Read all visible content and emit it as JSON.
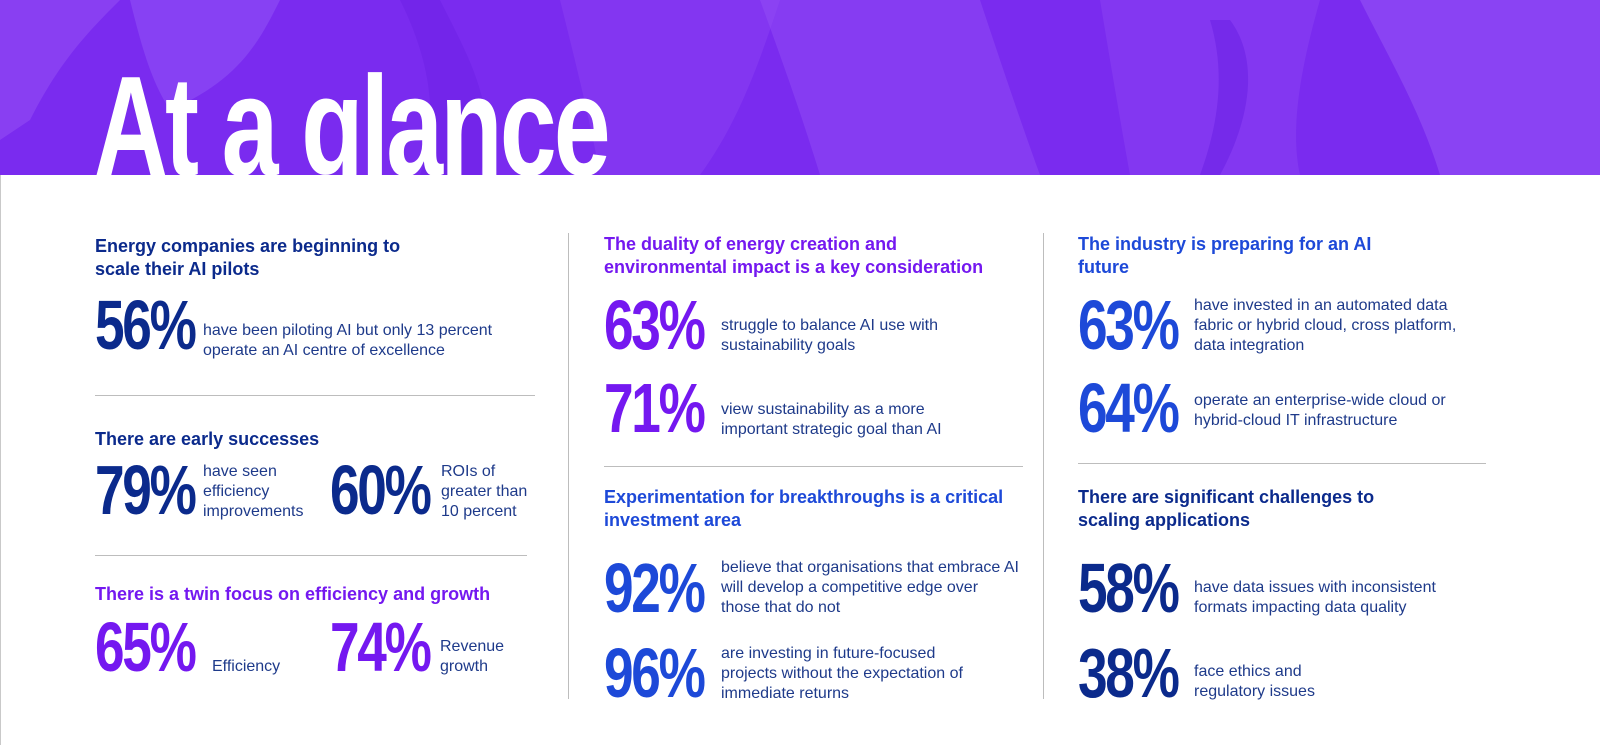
{
  "header": {
    "title": "At a glance",
    "background_color": "#7a2bef"
  },
  "colors": {
    "navy": "#0b2a8c",
    "purple": "#7418f0",
    "blue": "#1d49d8",
    "text": "#1e3a8a"
  },
  "col1": {
    "s1": {
      "heading": "Energy companies are beginning to scale their AI pilots",
      "stat": {
        "value": "56%",
        "text": "have been piloting AI but only 13 percent operate an AI centre of excellence"
      }
    },
    "s2": {
      "heading": "There are early successes",
      "stats": [
        {
          "value": "79%",
          "text": "have seen efficiency improvements"
        },
        {
          "value": "60%",
          "text": "ROIs of greater than 10 percent"
        }
      ]
    },
    "s3": {
      "heading": "There is a twin focus on efficiency and growth",
      "stats": [
        {
          "value": "65%",
          "text": "Efficiency"
        },
        {
          "value": "74%",
          "text": "Revenue growth"
        }
      ]
    }
  },
  "col2": {
    "s1": {
      "heading": "The duality of energy creation and environmental impact is a key consideration",
      "stats": [
        {
          "value": "63%",
          "text": "struggle to balance AI use with sustainability goals"
        },
        {
          "value": "71%",
          "text": "view sustainability as a more important strategic goal than AI"
        }
      ]
    },
    "s2": {
      "heading": "Experimentation for breakthroughs is a critical investment area",
      "stats": [
        {
          "value": "92%",
          "text": "believe that organisations that embrace AI will develop a competitive edge over those that do not"
        },
        {
          "value": "96%",
          "text": "are investing in future-focused projects without the expectation of immediate returns"
        }
      ]
    }
  },
  "col3": {
    "s1": {
      "heading": "The industry is preparing for an AI future",
      "stats": [
        {
          "value": "63%",
          "text": "have invested in an automated data fabric or hybrid cloud, cross platform, data integration"
        },
        {
          "value": "64%",
          "text": "operate an enterprise-wide cloud or hybrid-cloud IT infrastructure"
        }
      ]
    },
    "s2": {
      "heading": "There are significant challenges to scaling applications",
      "stats": [
        {
          "value": "58%",
          "text": "have data issues with inconsistent formats impacting data quality"
        },
        {
          "value": "38%",
          "text": "face ethics and regulatory issues"
        }
      ]
    }
  }
}
